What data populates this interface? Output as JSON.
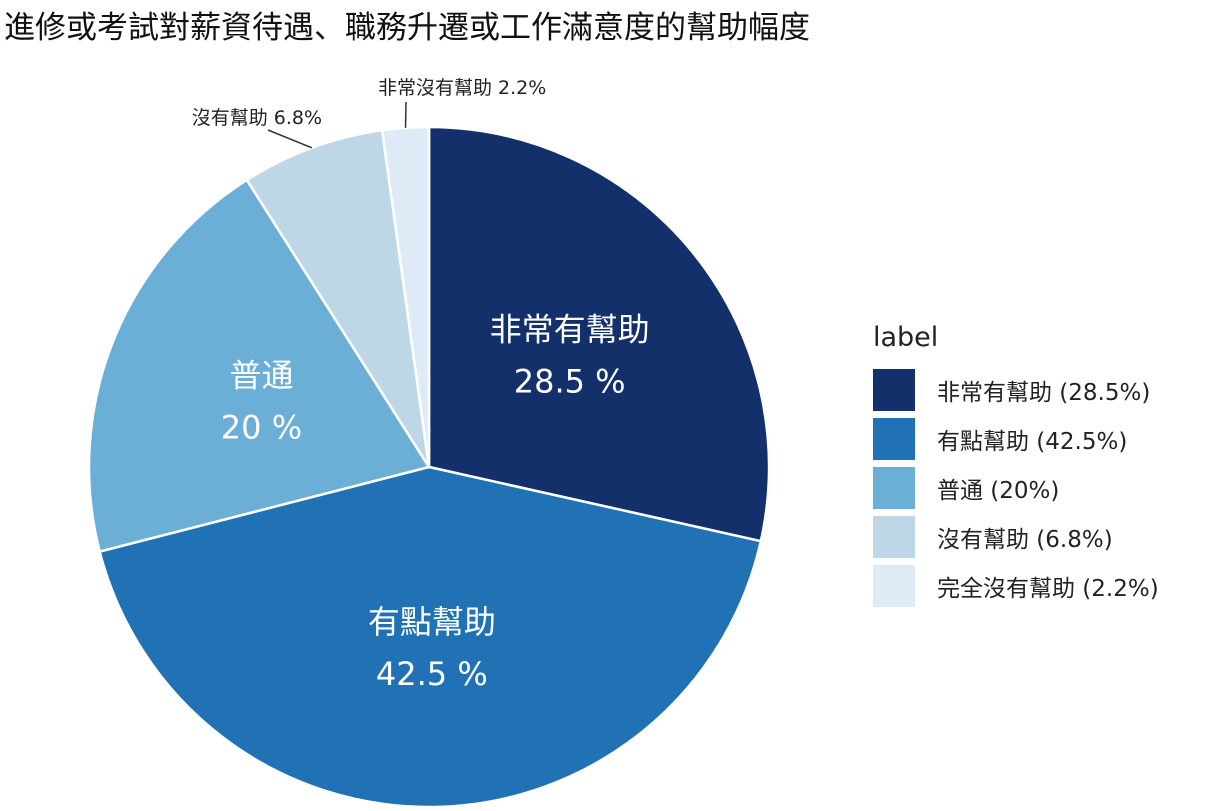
{
  "chart_data": {
    "type": "pie",
    "title": "進修或考試對薪資待遇、職務升遷或工作滿意度的幫助幅度",
    "legend_title": "label",
    "legend_placement": "right",
    "start_angle": "12 o'clock, clockwise",
    "slices": [
      {
        "name": "非常有幫助",
        "value": 28.5,
        "color": "#14306a",
        "inside_name": "非常有幫助",
        "inside_value": "28.5 %",
        "legend": "非常有幫助 (28.5%)"
      },
      {
        "name": "有點幫助",
        "value": 42.5,
        "color": "#2171b5",
        "inside_name": "有點幫助",
        "inside_value": "42.5 %",
        "legend": "有點幫助 (42.5%)"
      },
      {
        "name": "普通",
        "value": 20,
        "color": "#6baed6",
        "inside_name": "普通",
        "inside_value": "20 %",
        "legend": "普通 (20%)"
      },
      {
        "name": "沒有幫助",
        "value": 6.8,
        "color": "#bdd7e7",
        "outside_label": "沒有幫助 6.8%",
        "legend": "沒有幫助 (6.8%)"
      },
      {
        "name": "完全沒有幫助",
        "value": 2.2,
        "color": "#deebf7",
        "outside_label": "非常沒有幫助 2.2%",
        "legend": "完全沒有幫助 (2.2%)"
      }
    ]
  }
}
